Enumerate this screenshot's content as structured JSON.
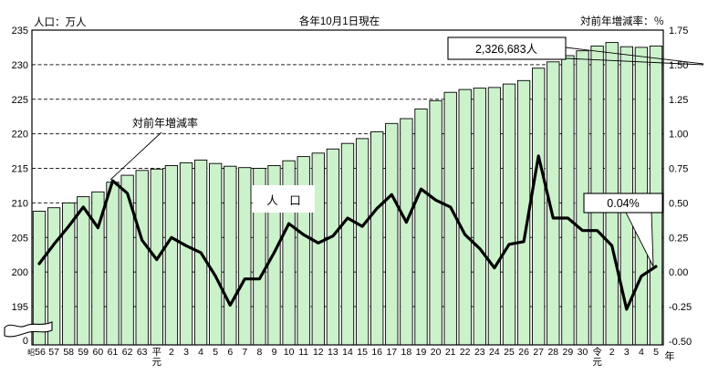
{
  "header": {
    "left_axis_title": "人口：万人",
    "center_title": "各年10月1日現在",
    "right_axis_title": "対前年増減率：％"
  },
  "annotations": {
    "rate_line_label": "対前年増減率",
    "population_box_label": "人　口",
    "population_callout": "2,326,683人",
    "rate_callout": "0.04%",
    "year_suffix": "年",
    "zero_label": "0"
  },
  "chart_data": {
    "type": "bar+line",
    "categories": [
      "昭56",
      "57",
      "58",
      "59",
      "60",
      "61",
      "62",
      "63",
      "平元",
      "2",
      "3",
      "4",
      "5",
      "6",
      "7",
      "8",
      "9",
      "10",
      "11",
      "12",
      "13",
      "14",
      "15",
      "16",
      "17",
      "18",
      "19",
      "20",
      "21",
      "22",
      "23",
      "24",
      "25",
      "26",
      "27",
      "28",
      "29",
      "30",
      "令元",
      "2",
      "3",
      "4",
      "5"
    ],
    "series": [
      {
        "name": "人口",
        "type": "bar",
        "axis": "left",
        "unit": "万人",
        "values": [
          208.8,
          209.3,
          210.0,
          210.9,
          211.6,
          213.0,
          214.0,
          214.7,
          214.9,
          215.4,
          215.8,
          216.2,
          215.7,
          215.3,
          215.1,
          215.0,
          215.4,
          216.1,
          216.7,
          217.2,
          217.8,
          218.6,
          219.3,
          220.3,
          221.5,
          222.2,
          223.6,
          224.8,
          226.0,
          226.4,
          226.6,
          226.7,
          227.2,
          227.7,
          229.5,
          230.4,
          231.3,
          232.0,
          232.7,
          233.2,
          232.6,
          232.5,
          232.7
        ]
      },
      {
        "name": "対前年増減率",
        "type": "line",
        "axis": "right",
        "unit": "%",
        "values": [
          0.06,
          0.2,
          0.33,
          0.47,
          0.32,
          0.66,
          0.57,
          0.23,
          0.09,
          0.25,
          0.19,
          0.14,
          -0.03,
          -0.24,
          -0.05,
          -0.05,
          0.14,
          0.35,
          0.27,
          0.21,
          0.26,
          0.39,
          0.33,
          0.46,
          0.56,
          0.36,
          0.6,
          0.52,
          0.47,
          0.27,
          0.17,
          0.03,
          0.2,
          0.22,
          0.84,
          0.39,
          0.39,
          0.3,
          0.3,
          0.19,
          -0.27,
          -0.03,
          0.04
        ]
      }
    ],
    "left_axis": {
      "ticks": [
        "235",
        "230",
        "225",
        "220",
        "215",
        "210",
        "205",
        "200",
        "195"
      ],
      "range": [
        195,
        235
      ],
      "zero_label": "0",
      "axis_break": true
    },
    "right_axis": {
      "ticks": [
        "1.75",
        "1.50",
        "1.25",
        "1.00",
        "0.75",
        "0.50",
        "0.25",
        "0.00",
        "-0.25",
        "-0.50"
      ],
      "range": [
        -0.5,
        1.75
      ]
    },
    "grid_left_values": [
      230,
      225,
      220,
      215,
      210,
      205,
      200,
      195
    ],
    "legend_position": "in-plot labels",
    "grid": "dashed-horizontal",
    "colors": {
      "bar_fill": "#ccf2cc",
      "bar_border": "#000000",
      "line": "#000000",
      "background": "#ffffff"
    }
  }
}
